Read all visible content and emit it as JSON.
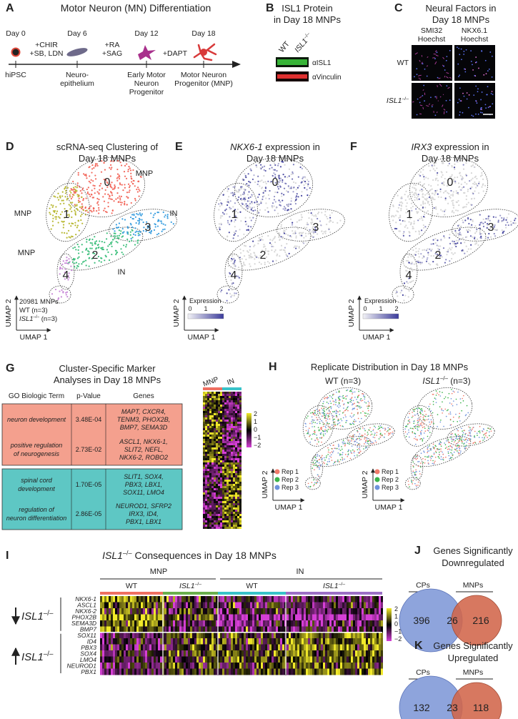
{
  "panels": {
    "A": {
      "letter": "A",
      "title": "Motor Neuron (MN) Differentiation",
      "days": [
        "Day 0",
        "Day 6",
        "Day 12",
        "Day 18"
      ],
      "treatments": [
        [
          "+CHIR",
          "+SB, LDN"
        ],
        [
          "+RA",
          "+SAG"
        ],
        [
          "+DAPT"
        ]
      ],
      "stages": [
        [
          "hiPSC"
        ],
        [
          "Neuro-",
          "epithelium"
        ],
        [
          "Early Motor",
          "Neuron",
          "Progenitor"
        ],
        [
          "Motor Neuron",
          "Progenitor (MNP)"
        ]
      ]
    },
    "B": {
      "letter": "B",
      "title": [
        "ISL1 Protein",
        "in Day 18 MNPs"
      ],
      "lanes": [
        "WT",
        {
          "gene": "ISL1",
          "sup": "–/–"
        }
      ],
      "bands": [
        "αISL1",
        "αVinculin"
      ]
    },
    "C": {
      "letter": "C",
      "title": [
        "Neural Factors in",
        "Day 18 MNPs"
      ],
      "stains": [
        [
          "SMI32",
          "Hoechst"
        ],
        [
          "NKX6.1",
          "Hoechst"
        ]
      ],
      "rows": [
        "WT",
        {
          "gene": "ISL1",
          "sup": "–/–"
        }
      ]
    },
    "D": {
      "letter": "D",
      "title": [
        "scRNA-seq Clustering of",
        "Day 18 MNPs"
      ],
      "clusters": [
        "0",
        "1",
        "2",
        "3",
        "4"
      ],
      "cluster_colors": [
        "#f2685c",
        "#b8b832",
        "#3dbf7c",
        "#3b9fe0",
        "#c98ad8"
      ],
      "cluster_types": [
        "MNP",
        "MNP",
        "IN",
        "IN",
        "MNP"
      ],
      "summary": [
        "20981 MNPs",
        "WT (n=3)",
        {
          "gene": "ISL1",
          "sup": "–/–",
          "suffix": " (n=3)"
        }
      ],
      "y_axis": "UMAP 2",
      "x_axis": "UMAP 1"
    },
    "E": {
      "letter": "E",
      "title": [
        {
          "gene": "NKX6-1",
          "suffix": " expression in"
        },
        "Day 18 MNPs"
      ],
      "clusters": [
        "0",
        "1",
        "2",
        "3",
        "4"
      ],
      "legend_title": "Expression",
      "legend_ticks": [
        "0",
        "1",
        "2"
      ],
      "y_axis": "UMAP 2",
      "x_axis": "UMAP 1"
    },
    "F": {
      "letter": "F",
      "title": [
        {
          "gene": "IRX3",
          "suffix": " expression in"
        },
        "Day 18 MNPs"
      ],
      "clusters": [
        "0",
        "1",
        "2",
        "3",
        "4"
      ],
      "legend_title": "Expression",
      "legend_ticks": [
        "0",
        "1",
        "2"
      ],
      "y_axis": "UMAP 2",
      "x_axis": "UMAP 1"
    },
    "G": {
      "letter": "G",
      "title": [
        "Cluster-Specific Marker",
        "Analyses in Day 18 MNPs"
      ],
      "headers": [
        "GO Biologic Term",
        "p-Value",
        "Genes"
      ],
      "rows": [
        {
          "term": [
            "neuron development"
          ],
          "p": "3.48E-04",
          "genes": [
            "MAPT, CXCR4,",
            "TENM3, PHOX2B,",
            "BMP7, SEMA3D"
          ]
        },
        {
          "term": [
            "positive regulation",
            "of neurogenesis"
          ],
          "p": "2.73E-02",
          "genes": [
            "ASCL1, NKX6-1,",
            "SLIT2, NEFL,",
            "NKX6-2, ROBO2"
          ]
        },
        {
          "term": [
            "spinal cord",
            "development"
          ],
          "p": "1.70E-05",
          "genes": [
            "SLIT1, SOX4,",
            "PBX3, LBX1,",
            "SOX11, LMO4"
          ]
        },
        {
          "term": [
            "regulation of",
            "neuron differentiation"
          ],
          "p": "2.86E-05",
          "genes": [
            "NEUROD1, SFRP2",
            "IRX3, ID4,",
            "PBX1, LBX1"
          ]
        }
      ],
      "heatmap_groups": [
        "MNP",
        "IN"
      ],
      "scale": [
        "2",
        "1",
        "0",
        "−1",
        "−2"
      ]
    },
    "H": {
      "letter": "H",
      "title": "Replicate Distribution in Day 18 MNPs",
      "plots": [
        "WT (n=3)",
        {
          "gene": "ISL1",
          "sup": "–/–",
          "suffix": " (n=3)"
        }
      ],
      "legend": [
        "Rep 1",
        "Rep 2",
        "Rep 3"
      ],
      "rep_colors": [
        "#f07a6a",
        "#3cb44b",
        "#6f93dc"
      ],
      "y_axis": "UMAP 2",
      "x_axis": "UMAP 1"
    },
    "I": {
      "letter": "I",
      "title": {
        "gene": "ISL1",
        "sup": "–/–",
        "suffix": " Consequences in Day 18 MNPs"
      },
      "cell_types": [
        "MNP",
        "IN"
      ],
      "genotypes": [
        "WT",
        {
          "gene": "ISL1",
          "sup": "–/–"
        },
        "WT",
        {
          "gene": "ISL1",
          "sup": "–/–"
        }
      ],
      "genes_down": [
        "NKX6-1",
        "ASCL1",
        "NKX6-2",
        "PHOX2B",
        "SEMA3D",
        "BMP7"
      ],
      "genes_up": [
        "SOX11",
        "ID4",
        "PBX3",
        "SOX4",
        "LMO4",
        "NEUROD1",
        "PBX1"
      ],
      "direction_labels": [
        {
          "gene": "ISL1",
          "sup": "–/–"
        },
        {
          "gene": "ISL1",
          "sup": "–/–"
        }
      ],
      "scale": [
        "2",
        "1",
        "0",
        "−1",
        "−2"
      ]
    },
    "J": {
      "letter": "J",
      "title": [
        "Genes Significantly",
        "Downregulated"
      ],
      "sets": [
        "CPs",
        "MNPs"
      ],
      "counts": [
        396,
        26,
        216
      ]
    },
    "K": {
      "letter": "K",
      "title": [
        "Genes Significantly",
        "Upregulated"
      ],
      "sets": [
        "CPs",
        "MNPs"
      ],
      "counts": [
        132,
        23,
        118
      ]
    }
  }
}
